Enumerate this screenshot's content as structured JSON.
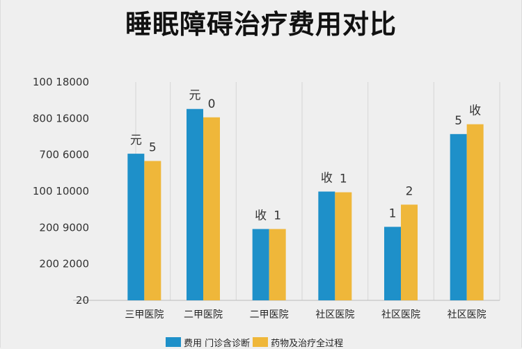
{
  "title": "睡眠障碍治疗费用对比",
  "colors": {
    "series_blue": "#1e90c9",
    "series_yellow": "#efb73a",
    "grid": "#d6d6d6",
    "axis_text": "#333333"
  },
  "chart_data": {
    "type": "bar",
    "title": "睡眠障碍治疗费用对比",
    "xlabel": "",
    "ylabel": "",
    "y_tick_labels": [
      "20",
      "200 2000",
      "200 9000",
      "100 10000",
      "700 6000",
      "800 16000",
      "100 18000"
    ],
    "ylim": [
      0,
      6
    ],
    "grid": true,
    "legend_position": "bottom",
    "categories": [
      "三甲医院",
      "二甲医院",
      "二甲医院",
      "社区医院",
      "社区医院",
      "社区医院"
    ],
    "series": [
      {
        "name": "费用 门诊含诊断",
        "color": "#1e90c9",
        "values": [
          4.03,
          5.26,
          1.96,
          2.99,
          2.02,
          4.57
        ]
      },
      {
        "name": "药物及治疗全过程",
        "color": "#efb73a",
        "values": [
          3.83,
          5.03,
          1.96,
          2.97,
          2.63,
          4.84
        ]
      }
    ],
    "annotations": [
      {
        "category_index": 0,
        "series_index": 0,
        "text": "元"
      },
      {
        "category_index": 0,
        "series_index": 1,
        "text": "5"
      },
      {
        "category_index": 1,
        "series_index": 0,
        "text": "元"
      },
      {
        "category_index": 1,
        "series_index": 1,
        "text": "0"
      },
      {
        "category_index": 2,
        "series_index": 0,
        "text": "收"
      },
      {
        "category_index": 2,
        "series_index": 1,
        "text": "1"
      },
      {
        "category_index": 3,
        "series_index": 0,
        "text": "收"
      },
      {
        "category_index": 3,
        "series_index": 1,
        "text": "1"
      },
      {
        "category_index": 4,
        "series_index": 0,
        "text": "1"
      },
      {
        "category_index": 4,
        "series_index": 1,
        "text": "2"
      },
      {
        "category_index": 5,
        "series_index": 0,
        "text": "5"
      },
      {
        "category_index": 5,
        "series_index": 1,
        "text": "收"
      }
    ]
  }
}
